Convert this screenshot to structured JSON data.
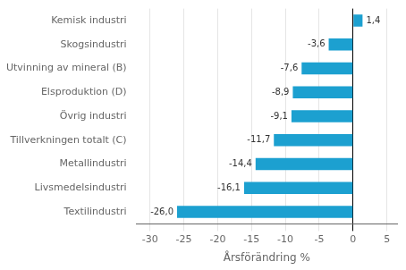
{
  "chart_data": {
    "type": "bar",
    "orientation": "horizontal",
    "categories": [
      "Textilindustri",
      "Livsmedelsindustri",
      "Metallindustri",
      "Tillverkningen totalt (C)",
      "Övrig industri",
      "Elsproduktion (D)",
      "Utvinning av mineral (B)",
      "Skogsindustri",
      "Kemisk industri"
    ],
    "values": [
      -26.0,
      -16.1,
      -14.4,
      -11.7,
      -9.1,
      -8.9,
      -7.6,
      -3.6,
      1.4
    ],
    "value_labels": [
      "-26,0",
      "-16,1",
      "-14,4",
      "-11,7",
      "-9,1",
      "-8,9",
      "-7,6",
      "-3,6",
      "1,4"
    ],
    "data_labels": true,
    "color": "#1ca0d0",
    "xlabel": "Årsförändring %",
    "xlim": [
      -32,
      6.5
    ],
    "xticks": [
      -30,
      -25,
      -20,
      -15,
      -10,
      -5,
      0,
      5
    ],
    "grid": true
  }
}
